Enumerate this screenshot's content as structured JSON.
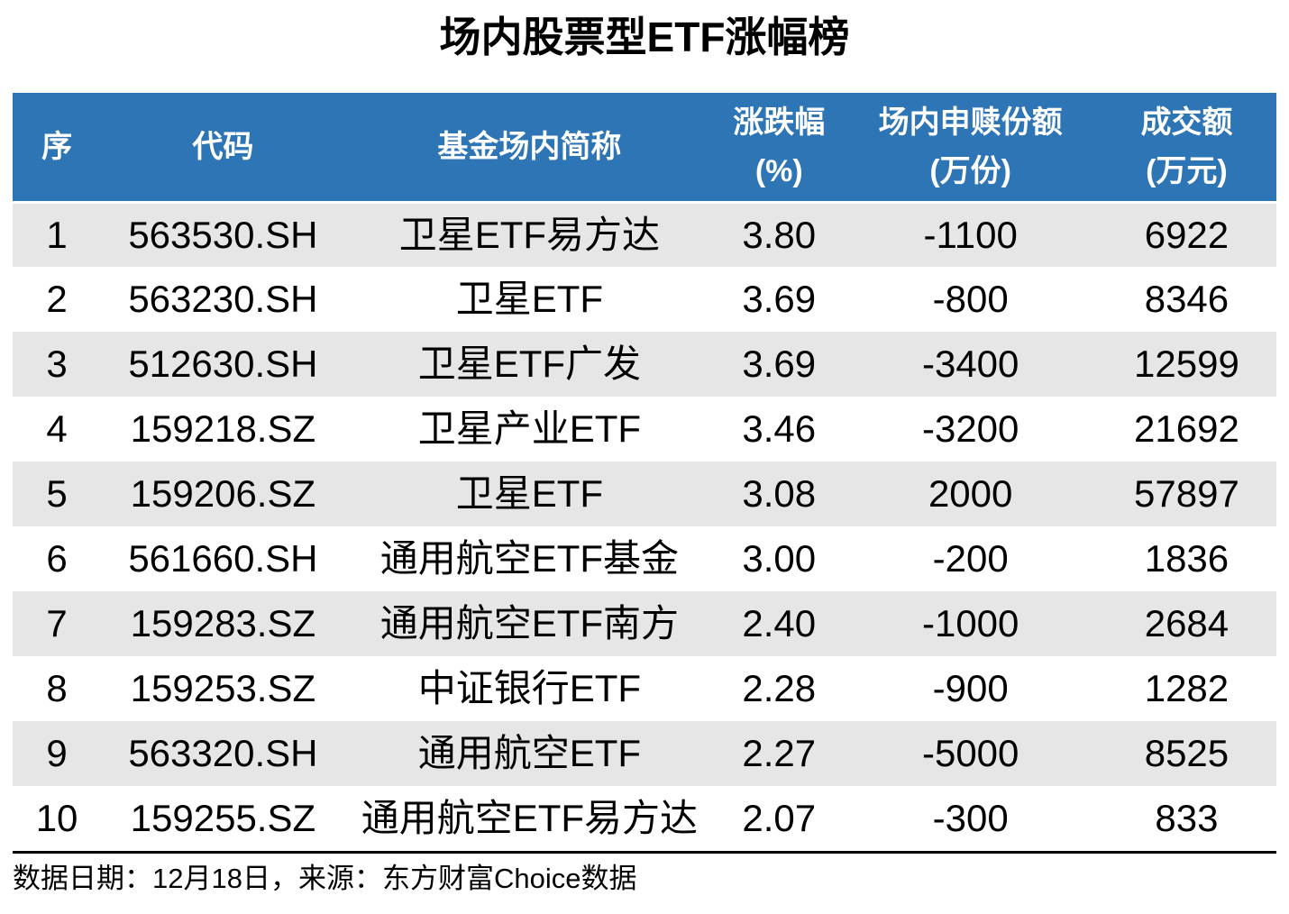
{
  "title": "场内股票型ETF涨幅榜",
  "colors": {
    "header_bg": "#2E75B6",
    "header_fg": "#FFFFFF",
    "stripe_bg": "#E7E6E6",
    "text_color": "#000000",
    "rule_color": "#000000",
    "page_bg": "#FFFFFF"
  },
  "table": {
    "header_lines": [
      {
        "line1": "序",
        "line2": ""
      },
      {
        "line1": "代码",
        "line2": ""
      },
      {
        "line1": "基金场内简称",
        "line2": ""
      },
      {
        "line1": "涨跌幅",
        "line2": "(%)"
      },
      {
        "line1": "场内申赎份额",
        "line2": "(万份)"
      },
      {
        "line1": "成交额",
        "line2": "(万元)"
      }
    ]
  },
  "chart_data": {
    "type": "table",
    "title": "场内股票型ETF涨幅榜",
    "columns": [
      "序",
      "代码",
      "基金场内简称",
      "涨跌幅(%)",
      "场内申赎份额(万份)",
      "成交额(万元)"
    ],
    "rows": [
      [
        "1",
        "563530.SH",
        "卫星ETF易方达",
        "3.80",
        "-1100",
        "6922"
      ],
      [
        "2",
        "563230.SH",
        "卫星ETF",
        "3.69",
        "-800",
        "8346"
      ],
      [
        "3",
        "512630.SH",
        "卫星ETF广发",
        "3.69",
        "-3400",
        "12599"
      ],
      [
        "4",
        "159218.SZ",
        "卫星产业ETF",
        "3.46",
        "-3200",
        "21692"
      ],
      [
        "5",
        "159206.SZ",
        "卫星ETF",
        "3.08",
        "2000",
        "57897"
      ],
      [
        "6",
        "561660.SH",
        "通用航空ETF基金",
        "3.00",
        "-200",
        "1836"
      ],
      [
        "7",
        "159283.SZ",
        "通用航空ETF南方",
        "2.40",
        "-1000",
        "2684"
      ],
      [
        "8",
        "159253.SZ",
        "中证银行ETF",
        "2.28",
        "-900",
        "1282"
      ],
      [
        "9",
        "563320.SH",
        "通用航空ETF",
        "2.27",
        "-5000",
        "8525"
      ],
      [
        "10",
        "159255.SZ",
        "通用航空ETF易方达",
        "2.07",
        "-300",
        "833"
      ]
    ]
  },
  "footer": {
    "text": "数据日期：12月18日，来源：东方财富Choice数据"
  }
}
